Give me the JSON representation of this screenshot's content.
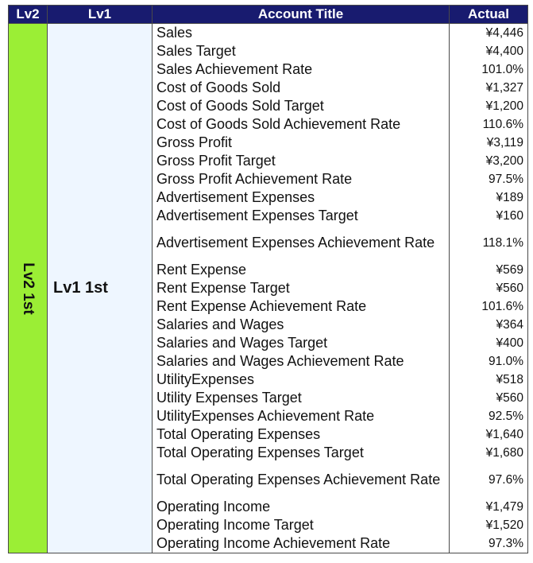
{
  "headers": {
    "lv2": "Lv2",
    "lv1": "Lv1",
    "title": "Account Title",
    "actual": "Actual"
  },
  "group": {
    "lv2": "Lv2 1st",
    "lv1": "Lv1 1st"
  },
  "rows": [
    {
      "title": "Sales",
      "actual": "¥4,446"
    },
    {
      "title": "Sales Target",
      "actual": "¥4,400"
    },
    {
      "title": "Sales Achievement Rate",
      "actual": "101.0%"
    },
    {
      "title": "Cost of Goods Sold",
      "actual": "¥1,327"
    },
    {
      "title": "Cost of Goods Sold Target",
      "actual": "¥1,200"
    },
    {
      "title": "Cost of Goods Sold Achievement Rate",
      "actual": "110.6%"
    },
    {
      "title": "Gross Profit",
      "actual": "¥3,119"
    },
    {
      "title": "Gross Profit Target",
      "actual": "¥3,200"
    },
    {
      "title": "Gross Profit Achievement Rate",
      "actual": "97.5%"
    },
    {
      "title": "Advertisement Expenses",
      "actual": "¥189"
    },
    {
      "title": "Advertisement Expenses Target",
      "actual": "¥160"
    },
    {
      "title": "Advertisement Expenses Achievement Rate",
      "actual": "118.1%"
    },
    {
      "title": "Rent Expense",
      "actual": "¥569"
    },
    {
      "title": "Rent Expense Target",
      "actual": "¥560"
    },
    {
      "title": "Rent Expense Achievement Rate",
      "actual": "101.6%"
    },
    {
      "title": "Salaries and Wages",
      "actual": "¥364"
    },
    {
      "title": "Salaries and Wages Target",
      "actual": "¥400"
    },
    {
      "title": "Salaries and Wages Achievement Rate",
      "actual": "91.0%"
    },
    {
      "title": "UtilityExpenses",
      "actual": "¥518"
    },
    {
      "title": "Utility Expenses Target",
      "actual": "¥560"
    },
    {
      "title": "UtilityExpenses Achievement Rate",
      "actual": "92.5%"
    },
    {
      "title": "Total Operating Expenses",
      "actual": "¥1,640"
    },
    {
      "title": "Total Operating Expenses Target",
      "actual": "¥1,680"
    },
    {
      "title": "Total Operating Expenses Achievement Rate",
      "actual": "97.6%"
    },
    {
      "title": "Operating Income",
      "actual": "¥1,479"
    },
    {
      "title": "Operating Income Target",
      "actual": "¥1,520"
    },
    {
      "title": "Operating Income Achievement Rate",
      "actual": "97.3%"
    }
  ]
}
